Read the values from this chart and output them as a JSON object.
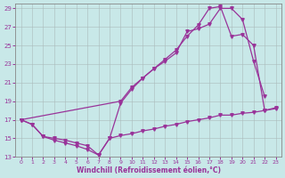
{
  "xlabel": "Windchill (Refroidissement éolien,°C)",
  "background_color": "#c8e8e8",
  "line_color": "#993399",
  "grid_color": "#b0c8c8",
  "xlim": [
    -0.5,
    23.5
  ],
  "ylim": [
    13,
    29.5
  ],
  "xticks": [
    0,
    1,
    2,
    3,
    4,
    5,
    6,
    7,
    8,
    9,
    10,
    11,
    12,
    13,
    14,
    15,
    16,
    17,
    18,
    19,
    20,
    21,
    22,
    23
  ],
  "yticks": [
    13,
    15,
    17,
    19,
    21,
    23,
    25,
    27,
    29
  ],
  "line1_x": [
    0,
    1,
    2,
    3,
    4,
    5,
    6,
    7,
    8,
    9,
    10,
    11,
    12,
    13,
    14,
    15,
    16,
    17,
    18,
    19,
    20,
    21,
    22
  ],
  "line1_y": [
    17.0,
    16.5,
    15.2,
    14.8,
    14.5,
    14.2,
    13.8,
    13.2,
    15.0,
    18.8,
    20.3,
    21.5,
    22.5,
    23.3,
    24.2,
    26.5,
    26.8,
    27.3,
    29.0,
    29.0,
    27.8,
    23.3,
    19.5
  ],
  "line2_x": [
    0,
    1,
    2,
    3,
    4,
    5,
    6,
    7,
    8,
    9,
    10,
    11,
    12,
    13,
    14,
    15,
    16,
    17,
    18,
    19,
    20,
    21,
    22,
    23
  ],
  "line2_y": [
    17.0,
    16.5,
    15.2,
    15.0,
    14.8,
    14.5,
    14.2,
    13.2,
    15.0,
    15.3,
    15.5,
    15.8,
    16.0,
    16.3,
    16.5,
    16.8,
    17.0,
    17.2,
    17.5,
    17.5,
    17.7,
    17.8,
    18.0,
    18.2
  ],
  "line3_x": [
    0,
    9,
    10,
    11,
    12,
    13,
    14,
    15,
    16,
    17,
    18,
    19,
    20,
    21,
    22,
    23
  ],
  "line3_y": [
    17.0,
    19.0,
    20.5,
    21.5,
    22.5,
    23.5,
    24.5,
    26.0,
    27.2,
    29.0,
    29.2,
    26.0,
    26.2,
    25.0,
    18.0,
    18.3
  ]
}
